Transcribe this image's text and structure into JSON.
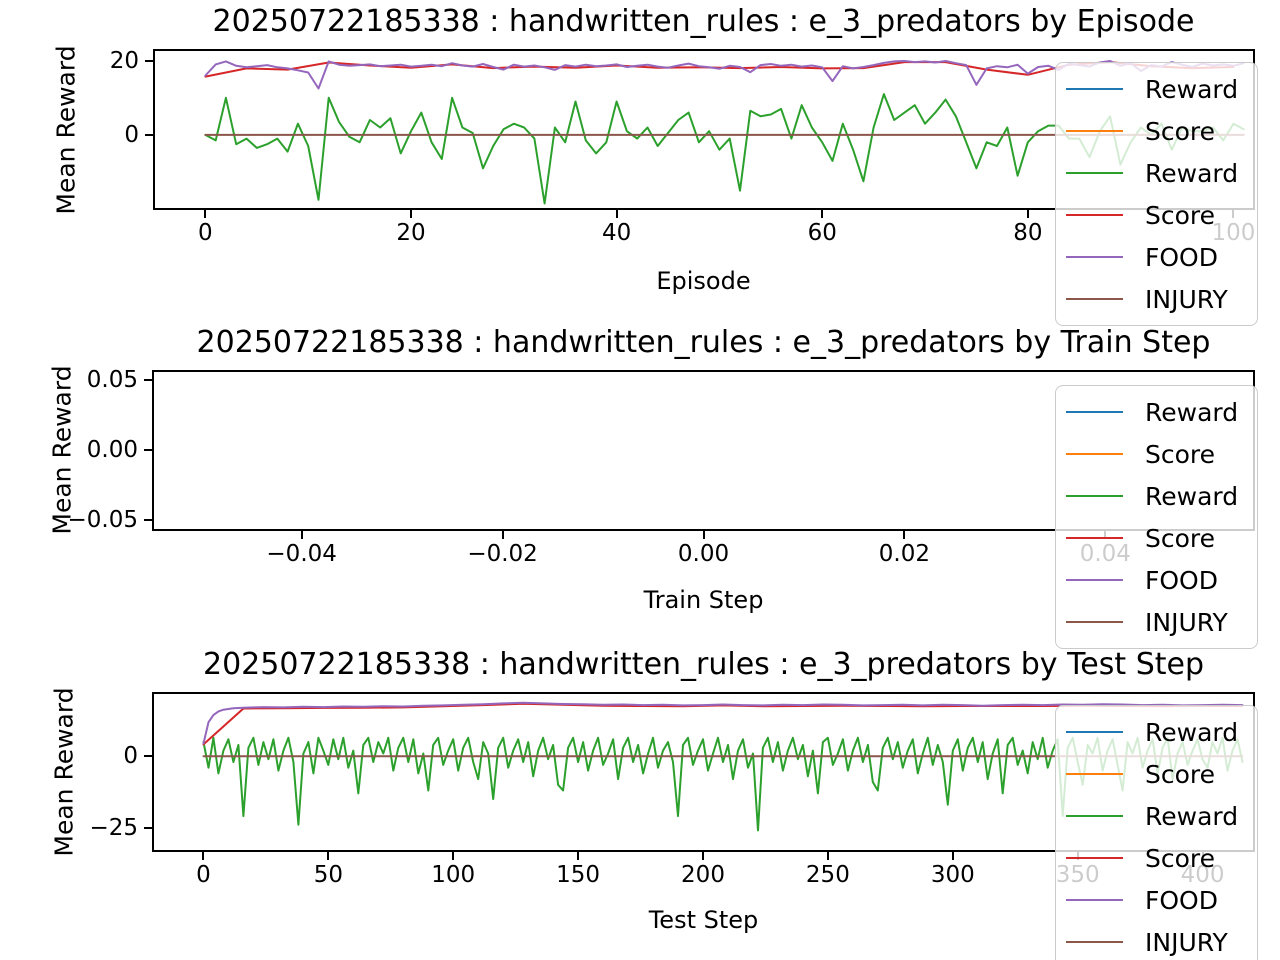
{
  "figure": {
    "background": "#ffffff"
  },
  "legend": {
    "entries": [
      {
        "label": "Reward",
        "color": "#1f77b4"
      },
      {
        "label": "Score",
        "color": "#ff7f0e"
      },
      {
        "label": "Reward",
        "color": "#2ca02c"
      },
      {
        "label": "Score",
        "color": "#d62728"
      },
      {
        "label": "FOOD",
        "color": "#9467bd"
      },
      {
        "label": "INJURY",
        "color": "#8c564b"
      }
    ]
  },
  "chart_data": [
    {
      "type": "line",
      "title": "20250722185338 : handwritten_rules : e_3_predators by Episode",
      "xlabel": "Episode",
      "ylabel": "Mean Reward",
      "xlim": [
        -4.9,
        101.9
      ],
      "ylim": [
        -19.7,
        22.6
      ],
      "xticks": {
        "values": [
          0,
          20,
          40,
          60,
          80,
          100
        ],
        "labels": [
          "0",
          "20",
          "40",
          "60",
          "80",
          "100"
        ]
      },
      "yticks": {
        "values": [
          0,
          20
        ],
        "labels": [
          "0",
          "20"
        ]
      },
      "legend_position": "upper right",
      "grid": false,
      "series": [
        {
          "name": "Reward",
          "color": "#1f77b4",
          "values": []
        },
        {
          "name": "Score",
          "color": "#ff7f0e",
          "values": []
        },
        {
          "name": "Reward",
          "color": "#2ca02c",
          "step": 1,
          "values": [
            0,
            -1.5,
            10,
            -2.5,
            -1,
            -3.5,
            -2.5,
            -1,
            -4.5,
            3,
            -3,
            -17.5,
            10,
            3.5,
            -0.5,
            -2,
            4,
            2,
            4.5,
            -5,
            1,
            6,
            -2,
            -6.5,
            10,
            2,
            0.5,
            -9,
            -3,
            1.5,
            3,
            2,
            -1,
            -18.5,
            2,
            -2,
            9,
            -1.5,
            -5,
            -2,
            9,
            1,
            -1,
            2,
            -3,
            0.5,
            4,
            6,
            -2,
            1,
            -4,
            -1,
            -15,
            6.5,
            5,
            5.5,
            7,
            -1,
            8,
            2,
            -2,
            -7,
            3,
            -4,
            -12.5,
            2,
            11,
            4,
            6,
            8,
            3,
            6,
            9.5,
            5,
            -2,
            -9,
            -2,
            -3,
            2,
            -11,
            -2,
            1,
            2.5,
            2.5,
            -1,
            -1,
            -6,
            1,
            5,
            -8,
            -2,
            2,
            0,
            3,
            -4,
            2,
            1,
            1,
            2,
            -1.5,
            3,
            1.5
          ]
        },
        {
          "name": "Score",
          "color": "#d62728",
          "step": 4,
          "values": [
            15.7,
            17.9,
            17.6,
            19.5,
            18.7,
            18.1,
            19,
            18,
            18.4,
            18.1,
            18.7,
            18.1,
            18.2,
            18,
            18.3,
            17.9,
            18,
            19.6,
            19.6,
            17.6,
            16.2,
            18.9,
            19.6,
            18.5,
            18,
            18.3
          ]
        },
        {
          "name": "FOOD",
          "color": "#9467bd",
          "step": 1,
          "values": [
            16,
            19,
            19.8,
            18.6,
            18.2,
            18.5,
            18.8,
            18.2,
            17.9,
            17.4,
            16.8,
            12.5,
            19.8,
            18.9,
            18.6,
            18.8,
            19,
            18.5,
            18.7,
            18.9,
            18.4,
            18.6,
            18.9,
            18.5,
            19.3,
            18.7,
            18.4,
            19.1,
            18.3,
            17.6,
            18.9,
            18.4,
            18.7,
            18.2,
            17.5,
            18.8,
            18.4,
            18.9,
            18.5,
            18.7,
            19,
            18.3,
            18.6,
            18.9,
            18.4,
            18.1,
            18.7,
            19.2,
            18.5,
            18.2,
            17.8,
            18.6,
            18.3,
            16.9,
            18.8,
            19.1,
            18.6,
            18.9,
            18.4,
            18.7,
            18.2,
            14.5,
            18.5,
            17.9,
            18.3,
            18.8,
            19.4,
            19.8,
            19.9,
            19.6,
            19.8,
            19.5,
            19.9,
            19.3,
            18.8,
            13.5,
            17.9,
            18.5,
            18.2,
            18.9,
            16.5,
            18.3,
            18.6,
            17.5,
            19.2,
            18.8,
            18.4,
            19.5,
            19.9,
            18.6,
            19.3,
            17.2,
            18.8,
            18.4,
            19.6,
            18.9,
            18.3,
            19.2,
            18.7,
            19,
            18.6,
            19.3
          ]
        },
        {
          "name": "INJURY",
          "color": "#8c564b",
          "const": 0,
          "x_range": [
            0,
            101
          ]
        }
      ]
    },
    {
      "type": "line",
      "title": "20250722185338 : handwritten_rules : e_3_predators by Train Step",
      "xlabel": "Train Step",
      "ylabel": "Mean Reward",
      "xlim": [
        -0.0547,
        0.0547
      ],
      "ylim": [
        -0.0563,
        0.0556
      ],
      "xticks": {
        "values": [
          -0.04,
          -0.02,
          0,
          0.02,
          0.04
        ],
        "labels": [
          "−0.04",
          "−0.02",
          "0.00",
          "0.02",
          "0.04"
        ]
      },
      "yticks": {
        "values": [
          -0.05,
          0,
          0.05
        ],
        "labels": [
          "−0.05",
          "0.00",
          "0.05"
        ]
      },
      "legend_position": "upper right",
      "grid": false,
      "series": [
        {
          "name": "Reward",
          "color": "#1f77b4",
          "values": []
        },
        {
          "name": "Score",
          "color": "#ff7f0e",
          "values": []
        },
        {
          "name": "Reward",
          "color": "#2ca02c",
          "values": []
        },
        {
          "name": "Score",
          "color": "#d62728",
          "values": []
        },
        {
          "name": "FOOD",
          "color": "#9467bd",
          "values": []
        },
        {
          "name": "INJURY",
          "color": "#8c564b",
          "values": []
        }
      ]
    },
    {
      "type": "line",
      "title": "20250722185338 : handwritten_rules : e_3_predators by Test Step",
      "xlabel": "Test Step",
      "ylabel": "Mean Reward",
      "xlim": [
        -19.8,
        420.2
      ],
      "ylim": [
        -32.9,
        21.9
      ],
      "xticks": {
        "values": [
          0,
          50,
          100,
          150,
          200,
          250,
          300,
          350,
          400
        ],
        "labels": [
          "0",
          "50",
          "100",
          "150",
          "200",
          "250",
          "300",
          "350",
          "400"
        ]
      },
      "yticks": {
        "values": [
          -25,
          0
        ],
        "labels": [
          "−25",
          "0"
        ]
      },
      "legend_position": "upper right",
      "grid": false,
      "series": [
        {
          "name": "Reward",
          "color": "#1f77b4",
          "values": []
        },
        {
          "name": "Score",
          "color": "#ff7f0e",
          "values": []
        },
        {
          "name": "Reward",
          "color": "#2ca02c",
          "step": 2,
          "values": [
            5,
            -4,
            6.5,
            -6,
            2,
            6,
            -2,
            4,
            -21,
            3,
            6.5,
            -3,
            5,
            -1,
            6,
            -5,
            2,
            6.5,
            -2,
            -24,
            1,
            5,
            -6,
            6.5,
            2,
            -3,
            6,
            -1,
            6.5,
            -4,
            2,
            -13,
            4,
            6.5,
            -2,
            5,
            1,
            6.5,
            -5,
            3,
            6.5,
            -2,
            6,
            -6,
            1,
            -12,
            4,
            6.5,
            -3,
            2,
            6,
            -5,
            3,
            6.5,
            -2,
            -8,
            5,
            1,
            -15,
            3,
            6.5,
            -4,
            2,
            6,
            -2,
            5,
            -7,
            2,
            6.5,
            -1,
            4,
            -10,
            -12,
            3,
            6.5,
            -2,
            5,
            -5,
            2,
            6.5,
            -3,
            1,
            6,
            -8,
            3,
            6.5,
            -2,
            4,
            -6,
            1,
            6.5,
            -4,
            2,
            5,
            -2,
            -21,
            4,
            6.5,
            -3,
            2,
            6,
            -5,
            1,
            6.5,
            -2,
            4,
            -8,
            2,
            6,
            -4,
            1,
            -26,
            3,
            6.5,
            -2,
            5,
            -5,
            2,
            6.5,
            -1,
            4,
            -7,
            2,
            -13,
            5,
            6.5,
            -3,
            1,
            6,
            -5,
            2,
            6.5,
            -2,
            4,
            -9,
            -12,
            3,
            6.5,
            -1,
            5,
            -4,
            2,
            6,
            -6,
            1,
            6.5,
            -3,
            4,
            -2,
            -17,
            2,
            6,
            -5,
            3,
            6.5,
            -2,
            5,
            -8,
            1,
            6,
            -13,
            4,
            6.5,
            -3,
            2,
            -6,
            5,
            -1,
            6.5,
            -4,
            2,
            6,
            -21,
            3,
            6.5,
            -2,
            -10,
            4,
            1,
            6.5,
            -5,
            2,
            6,
            -3,
            -12,
            5,
            1,
            6.5,
            -4,
            2,
            6,
            -6,
            3,
            6.5,
            -8,
            1,
            5,
            -3,
            2,
            6,
            -1,
            -4,
            5,
            1,
            6.5,
            -5,
            2,
            6,
            -2
          ]
        },
        {
          "name": "Score",
          "color": "#d62728",
          "x": [
            0,
            16,
            32,
            48,
            64,
            80,
            96,
            112,
            128,
            144,
            160,
            176,
            192,
            208,
            224,
            240,
            256,
            272,
            288,
            304,
            320,
            336,
            352,
            368,
            384,
            400,
            416
          ],
          "values": [
            4.2,
            16.8,
            16.9,
            17,
            17.1,
            17.2,
            17.6,
            18,
            18.5,
            18.1,
            17.8,
            17.7,
            17.6,
            17.9,
            17.6,
            17.7,
            17.8,
            17.7,
            17.6,
            17.7,
            17.7,
            17.7,
            17.8,
            17.7,
            17.6,
            17.7,
            17.7
          ]
        },
        {
          "name": "FOOD",
          "color": "#9467bd",
          "x": [
            0,
            2,
            4,
            6,
            8,
            12,
            16,
            20,
            24,
            32,
            40,
            48,
            56,
            64,
            72,
            80,
            88,
            96,
            104,
            112,
            120,
            128,
            136,
            144,
            152,
            160,
            168,
            176,
            184,
            192,
            200,
            208,
            216,
            224,
            232,
            240,
            248,
            256,
            264,
            272,
            280,
            288,
            296,
            304,
            312,
            320,
            328,
            336,
            344,
            352,
            360,
            368,
            376,
            384,
            392,
            400,
            408,
            416
          ],
          "values": [
            4.5,
            12,
            14.5,
            15.8,
            16.4,
            16.9,
            17.1,
            17.2,
            17.3,
            17.2,
            17.4,
            17.3,
            17.5,
            17.4,
            17.6,
            17.5,
            17.8,
            17.9,
            18.1,
            18.3,
            18.6,
            18.8,
            18.6,
            18.4,
            18.3,
            18.1,
            18.2,
            18,
            18.1,
            17.9,
            18,
            18.2,
            18,
            17.9,
            18.1,
            18,
            18.2,
            18.1,
            17.9,
            18,
            18.1,
            17.9,
            18.1,
            18,
            17.8,
            18,
            18.1,
            18,
            18.2,
            18.1,
            18.3,
            18.2,
            18,
            18.1,
            17.9,
            18,
            18.1,
            18
          ]
        },
        {
          "name": "INJURY",
          "color": "#8c564b",
          "const": 0,
          "x_range": [
            0,
            416
          ]
        }
      ]
    }
  ]
}
